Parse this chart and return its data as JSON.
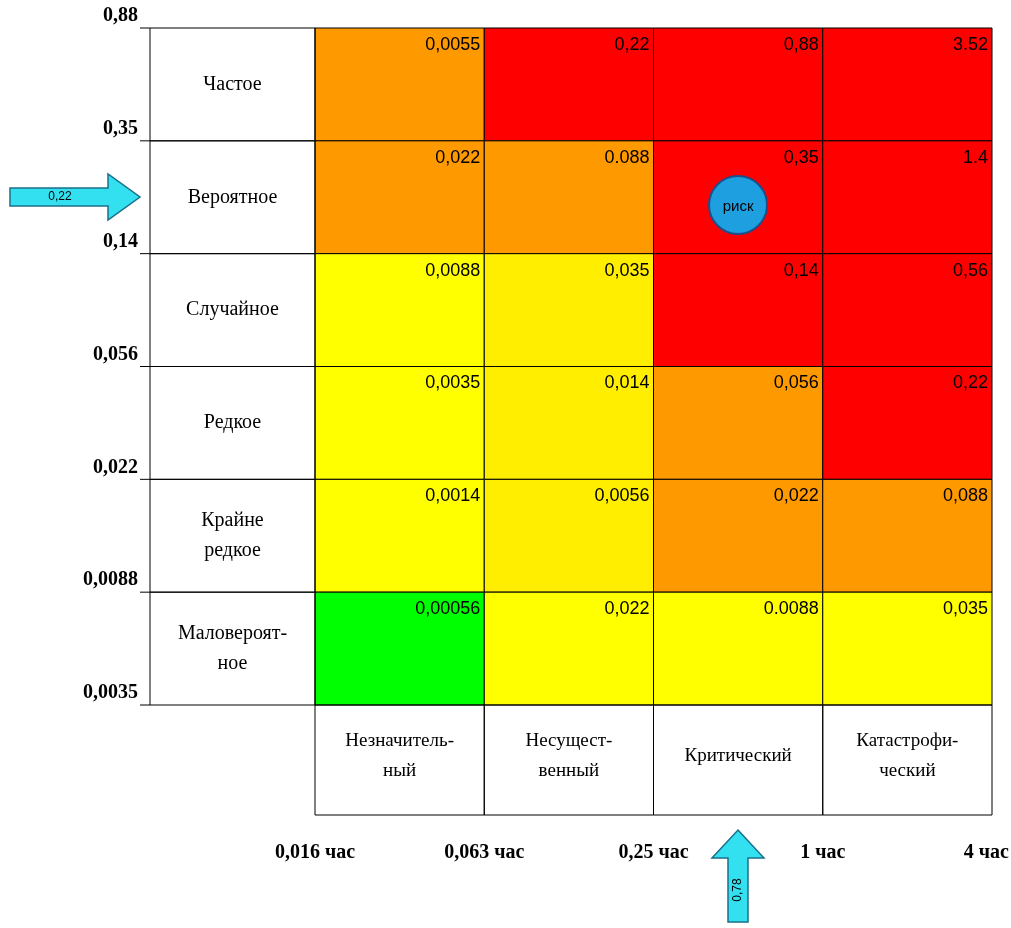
{
  "chart_data": {
    "type": "heatmap",
    "categories": [
      "Незначитель-\nный",
      "Несущест-\nвенный",
      "Критический",
      "Катастрофи-\nческий"
    ],
    "y_categories": [
      "Частое",
      "Вероятное",
      "Случайное",
      "Редкое",
      "Крайне\nредкое",
      "Маловероят-\nное"
    ],
    "cells": [
      [
        0.0055,
        0.22,
        0.88,
        3.52
      ],
      [
        0.022,
        0.088,
        0.35,
        1.4
      ],
      [
        0.0088,
        0.035,
        0.14,
        0.56
      ],
      [
        0.0035,
        0.014,
        0.056,
        0.22
      ],
      [
        0.0014,
        0.0056,
        0.022,
        0.088
      ],
      [
        0.00056,
        0.022,
        0.0088,
        0.035
      ]
    ],
    "cell_labels": [
      [
        "0,0055",
        "0,22",
        "0,88",
        "3.52"
      ],
      [
        "0,022",
        "0.088",
        "0,35",
        "1.4"
      ],
      [
        "0,0088",
        "0,035",
        "0,14",
        "0,56"
      ],
      [
        "0,0035",
        "0,014",
        "0,056",
        "0,22"
      ],
      [
        "0,0014",
        "0,0056",
        "0,022",
        "0,088"
      ],
      [
        "0,00056",
        "0,022",
        "0.0088",
        "0,035"
      ]
    ],
    "colors": [
      [
        "#ff9900",
        "#ff0000",
        "#ff0000",
        "#ff0000"
      ],
      [
        "#ff9900",
        "#ff9900",
        "#ff0000",
        "#ff0000"
      ],
      [
        "#ffff00",
        "#ffee00",
        "#ff0000",
        "#ff0000"
      ],
      [
        "#ffff00",
        "#ffee00",
        "#ff9900",
        "#ff0000"
      ],
      [
        "#ffff00",
        "#ffee00",
        "#ff9900",
        "#ff9900"
      ],
      [
        "#00ff00",
        "#ffff00",
        "#ffff00",
        "#ffff00"
      ]
    ],
    "annotations": [
      "0,88",
      "0,35",
      "0,14",
      "0,056",
      "0,022",
      "0,0088",
      "0,0035",
      "0,016 час",
      "0,063 час",
      "0,25 час",
      "1 час",
      "4 час",
      "0,22",
      "0,78",
      "риск"
    ]
  }
}
